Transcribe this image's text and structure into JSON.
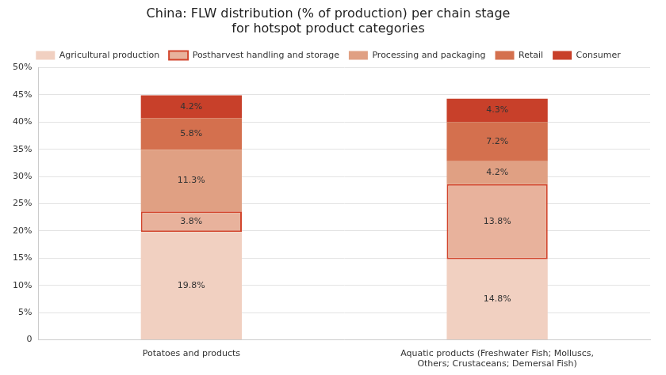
{
  "chart_data": {
    "type": "bar",
    "title": [
      "China: FLW distribution (% of production) per chain stage",
      "for hotspot product categories"
    ],
    "categories": [
      "Potatoes and products",
      [
        "Aquatic products (Freshwater Fish; Molluscs,",
        "Others; Crustaceans; Demersal Fish)"
      ]
    ],
    "series": [
      {
        "name": "Agricultural production",
        "color": "#f1d0c1",
        "values": [
          19.8,
          14.8
        ],
        "value_labels": [
          "19.8%",
          "14.8%"
        ]
      },
      {
        "name": "Postharvest handling and storage",
        "color": "#e8b29c",
        "values": [
          3.8,
          13.8
        ],
        "value_labels": [
          "3.8%",
          "13.8%"
        ]
      },
      {
        "name": "Processing and packaging",
        "color": "#e0a083",
        "values": [
          11.3,
          4.2
        ],
        "value_labels": [
          "11.3%",
          "4.2%"
        ]
      },
      {
        "name": "Retail",
        "color": "#d4704e",
        "values": [
          5.8,
          7.2
        ],
        "value_labels": [
          "5.8%",
          "7.2%"
        ]
      },
      {
        "name": "Consumer",
        "color": "#c8402a",
        "values": [
          4.2,
          4.3
        ],
        "value_labels": [
          "4.2%",
          "4.3%"
        ]
      }
    ],
    "ylim": [
      0,
      50
    ],
    "yticks": [
      0,
      {
        "value": 5,
        "label": "5%"
      },
      {
        "value": 10,
        "label": "10%"
      },
      {
        "value": 15,
        "label": "15%"
      },
      {
        "value": 20,
        "label": "20%"
      },
      {
        "value": 25,
        "label": "25%"
      },
      {
        "value": 30,
        "label": "30%"
      },
      {
        "value": 35,
        "label": "35%"
      },
      {
        "value": 40,
        "label": "40%"
      },
      {
        "value": 45,
        "label": "45%"
      },
      {
        "value": 50,
        "label": "50%"
      }
    ],
    "grid": true,
    "stacked": true,
    "data_labels": true,
    "legend": "top"
  }
}
